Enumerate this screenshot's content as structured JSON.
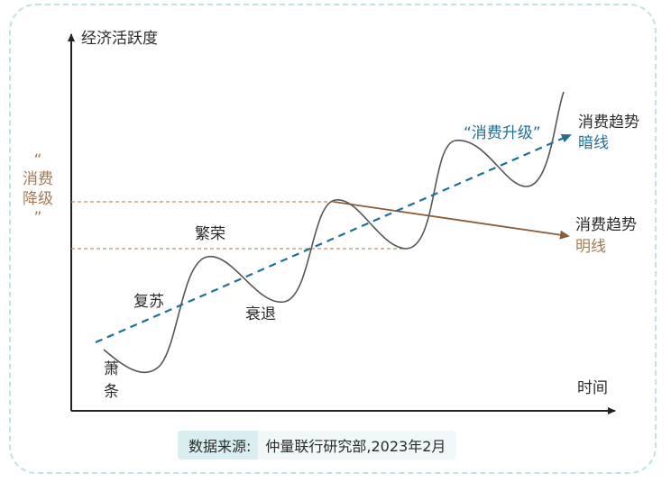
{
  "y_axis_label": "经济活跃度",
  "x_axis_label": "时间",
  "phases": {
    "depression": [
      "萧",
      "条"
    ],
    "recovery": "复苏",
    "prosperity": "繁荣",
    "recession": "衰退"
  },
  "upgrade_label": "“消费升级”",
  "downgrade_label": [
    "“",
    "消费",
    "降级",
    "”"
  ],
  "dark_trend": [
    "消费趋势",
    "暗线"
  ],
  "bright_trend": [
    "消费趋势",
    "明线"
  ],
  "source": {
    "key": "数据来源:",
    "value": "仲量联行研究部,2023年2月"
  },
  "colors": {
    "curve": "#555555",
    "dashed_trend": "#1f6f95",
    "bright_arrow": "#8a5c38",
    "guide_lines": "#b8926e",
    "frame": "#bfe2e6"
  }
}
